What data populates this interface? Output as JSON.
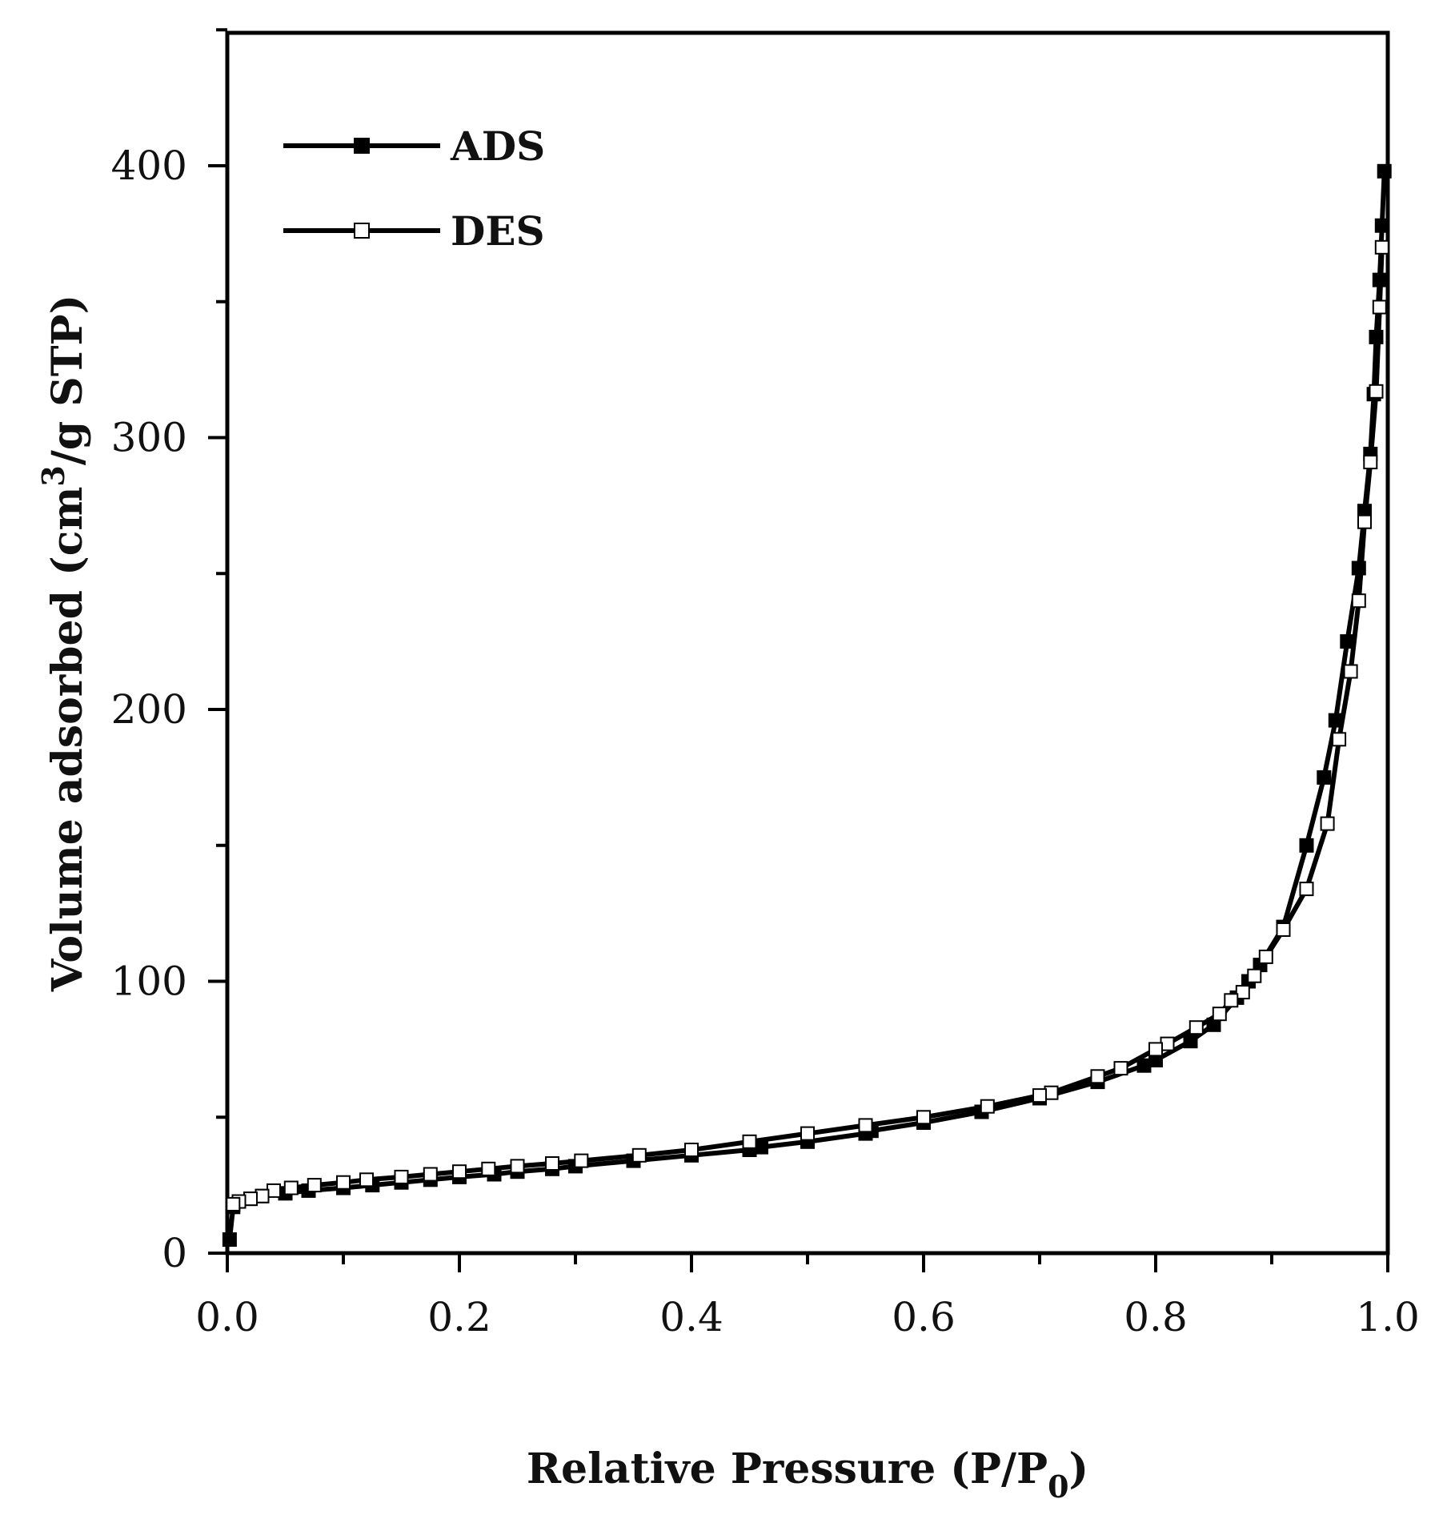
{
  "chart_data": {
    "type": "line",
    "xlabel": {
      "main": "Relative Pressure (P/P",
      "sub": "0",
      "end": ")"
    },
    "ylabel": {
      "main": "Volume adsorbed (cm",
      "sup": "3",
      "end": "/g STP)"
    },
    "xlim": [
      0,
      1.0
    ],
    "ylim": [
      0,
      450
    ],
    "xticks": [
      "0.0",
      "0.2",
      "0.4",
      "0.6",
      "0.8",
      "1.0"
    ],
    "xtick_values": [
      0,
      0.2,
      0.4,
      0.6,
      0.8,
      1.0
    ],
    "yticks": [
      "0",
      "100",
      "200",
      "300",
      "400"
    ],
    "ytick_values": [
      0,
      100,
      200,
      300,
      400
    ],
    "grid": false,
    "legend_position": "top-left",
    "series": [
      {
        "name": "ADS",
        "marker": "filled-square",
        "color": "#000000",
        "x": [
          0.002,
          0.005,
          0.01,
          0.02,
          0.03,
          0.05,
          0.07,
          0.1,
          0.125,
          0.15,
          0.175,
          0.2,
          0.23,
          0.25,
          0.28,
          0.3,
          0.35,
          0.4,
          0.45,
          0.46,
          0.5,
          0.55,
          0.555,
          0.6,
          0.65,
          0.7,
          0.75,
          0.79,
          0.8,
          0.83,
          0.85,
          0.87,
          0.88,
          0.89,
          0.91,
          0.93,
          0.945,
          0.955,
          0.965,
          0.975,
          0.98,
          0.985,
          0.988,
          0.99,
          0.993,
          0.995,
          0.997
        ],
        "y": [
          5,
          17,
          19,
          20,
          21,
          22,
          23,
          24,
          25,
          26,
          27,
          28,
          29,
          30,
          31,
          32,
          34,
          36,
          38,
          39,
          41,
          44,
          45,
          48,
          52,
          57,
          63,
          69,
          71,
          78,
          84,
          94,
          100,
          106,
          120,
          150,
          175,
          196,
          225,
          252,
          273,
          294,
          316,
          337,
          358,
          378,
          398
        ]
      },
      {
        "name": "DES",
        "marker": "open-square",
        "color": "#000000",
        "x": [
          0.995,
          0.993,
          0.99,
          0.985,
          0.98,
          0.975,
          0.968,
          0.958,
          0.948,
          0.93,
          0.91,
          0.895,
          0.885,
          0.875,
          0.865,
          0.855,
          0.835,
          0.81,
          0.8,
          0.77,
          0.75,
          0.71,
          0.7,
          0.655,
          0.6,
          0.55,
          0.5,
          0.45,
          0.4,
          0.355,
          0.305,
          0.28,
          0.25,
          0.225,
          0.2,
          0.175,
          0.15,
          0.12,
          0.1,
          0.075,
          0.055,
          0.04,
          0.03,
          0.02,
          0.01,
          0.005
        ],
        "y": [
          370,
          348,
          317,
          291,
          269,
          240,
          214,
          189,
          158,
          134,
          119,
          109,
          102,
          96,
          93,
          88,
          83,
          77,
          75,
          68,
          65,
          59,
          58,
          54,
          50,
          47,
          44,
          41,
          38,
          36,
          34,
          33,
          32,
          31,
          30,
          29,
          28,
          27,
          26,
          25,
          24,
          23,
          21,
          20,
          19,
          18
        ]
      }
    ]
  }
}
